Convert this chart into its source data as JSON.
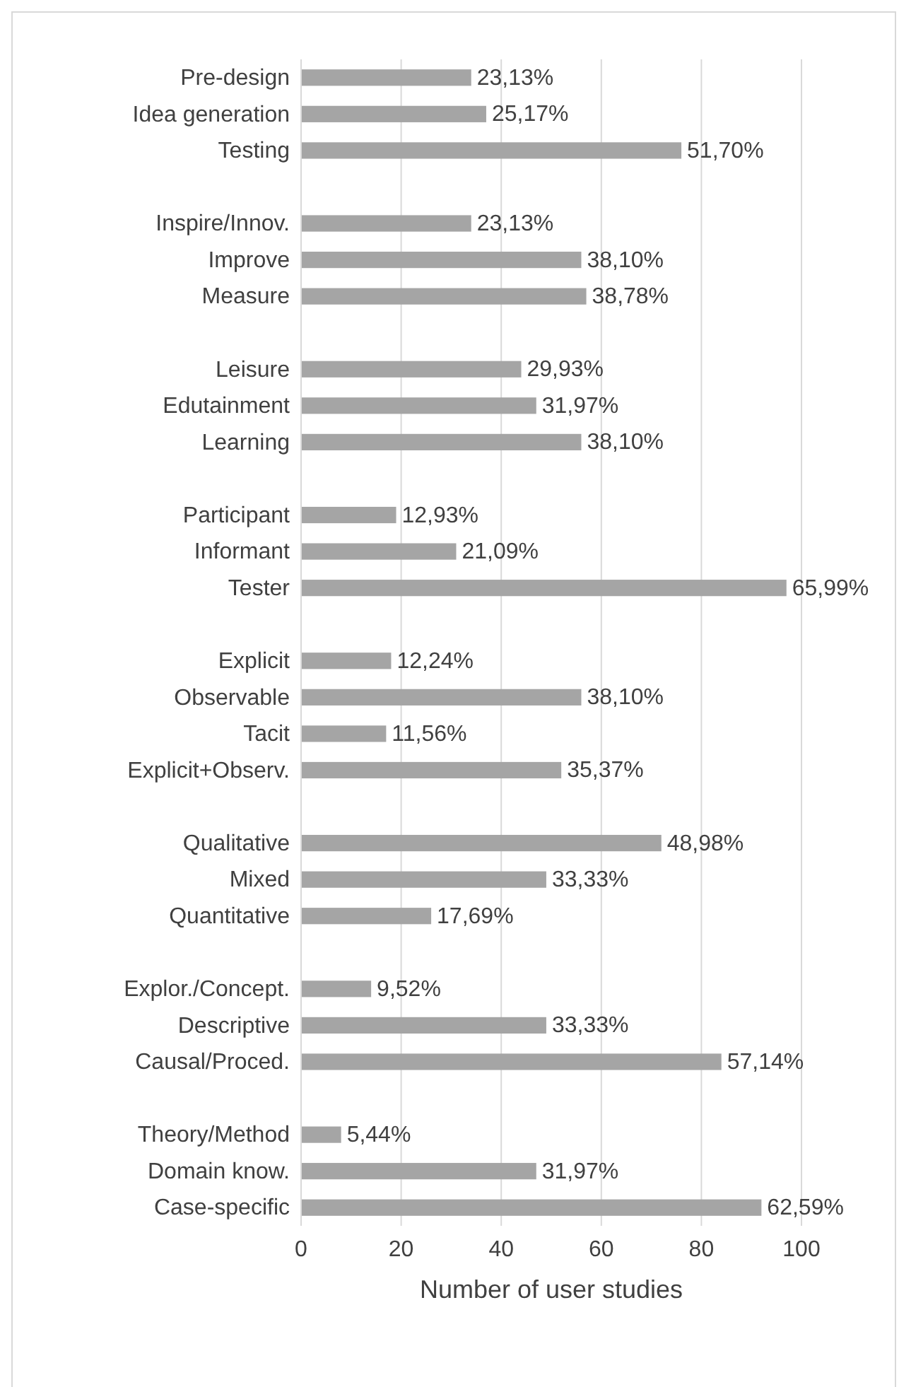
{
  "chart_data": {
    "type": "bar",
    "orientation": "horizontal",
    "xlabel": "Number of user studies",
    "categories": [
      "Pre-design",
      "Idea generation",
      "Testing",
      null,
      "Inspire/Innov.",
      "Improve",
      "Measure",
      null,
      "Leisure",
      "Edutainment",
      "Learning",
      null,
      "Participant",
      "Informant",
      "Tester",
      null,
      "Explicit",
      "Observable",
      "Tacit",
      "Explicit+Observ.",
      null,
      "Qualitative",
      "Mixed",
      "Quantitative",
      null,
      "Explor./Concept.",
      "Descriptive",
      "Causal/Proced.",
      null,
      "Theory/Method",
      "Domain know.",
      "Case-specific"
    ],
    "values": [
      34,
      37,
      76,
      null,
      34,
      56,
      57,
      null,
      44,
      47,
      56,
      null,
      19,
      31,
      97,
      null,
      18,
      56,
      17,
      52,
      null,
      72,
      49,
      26,
      null,
      14,
      49,
      84,
      null,
      8,
      47,
      92
    ],
    "annotations": [
      {
        "text": "23,13%",
        "x": 34,
        "y": "Pre-design"
      },
      {
        "text": "25,17%",
        "x": 37,
        "y": "Idea generation"
      },
      {
        "text": "51,70%",
        "x": 76,
        "y": "Testing"
      },
      {
        "text": "23,13%",
        "x": 34,
        "y": "Inspire/Innov."
      },
      {
        "text": "38,10%",
        "x": 56,
        "y": "Improve"
      },
      {
        "text": "38,78%",
        "x": 57,
        "y": "Measure"
      },
      {
        "text": "29,93%",
        "x": 44,
        "y": "Leisure"
      },
      {
        "text": "31,97%",
        "x": 47,
        "y": "Edutainment"
      },
      {
        "text": "38,10%",
        "x": 56,
        "y": "Learning"
      },
      {
        "text": "12,93%",
        "x": 19,
        "y": "Participant"
      },
      {
        "text": "21,09%",
        "x": 31,
        "y": "Informant"
      },
      {
        "text": "65,99%",
        "x": 97,
        "y": "Tester"
      },
      {
        "text": "12,24%",
        "x": 18,
        "y": "Explicit"
      },
      {
        "text": "38,10%",
        "x": 56,
        "y": "Observable"
      },
      {
        "text": "11,56%",
        "x": 17,
        "y": "Tacit"
      },
      {
        "text": "35,37%",
        "x": 52,
        "y": "Explicit+Observ."
      },
      {
        "text": "48,98%",
        "x": 72,
        "y": "Qualitative"
      },
      {
        "text": "33,33%",
        "x": 49,
        "y": "Mixed"
      },
      {
        "text": "17,69%",
        "x": 26,
        "y": "Quantitative"
      },
      {
        "text": "9,52%",
        "x": 14,
        "y": "Explor./Concept."
      },
      {
        "text": "33,33%",
        "x": 49,
        "y": "Descriptive"
      },
      {
        "text": "57,14%",
        "x": 84,
        "y": "Causal/Proced."
      },
      {
        "text": "5,44%",
        "x": 8,
        "y": "Theory/Method"
      },
      {
        "text": "31,97%",
        "x": 47,
        "y": "Domain know."
      },
      {
        "text": "62,59%",
        "x": 92,
        "y": "Case-specific"
      }
    ],
    "color": "#a5a5a5",
    "xlim": [
      0,
      100
    ],
    "xticks": [
      0,
      20,
      40,
      60,
      80,
      100
    ],
    "grid": "x"
  }
}
